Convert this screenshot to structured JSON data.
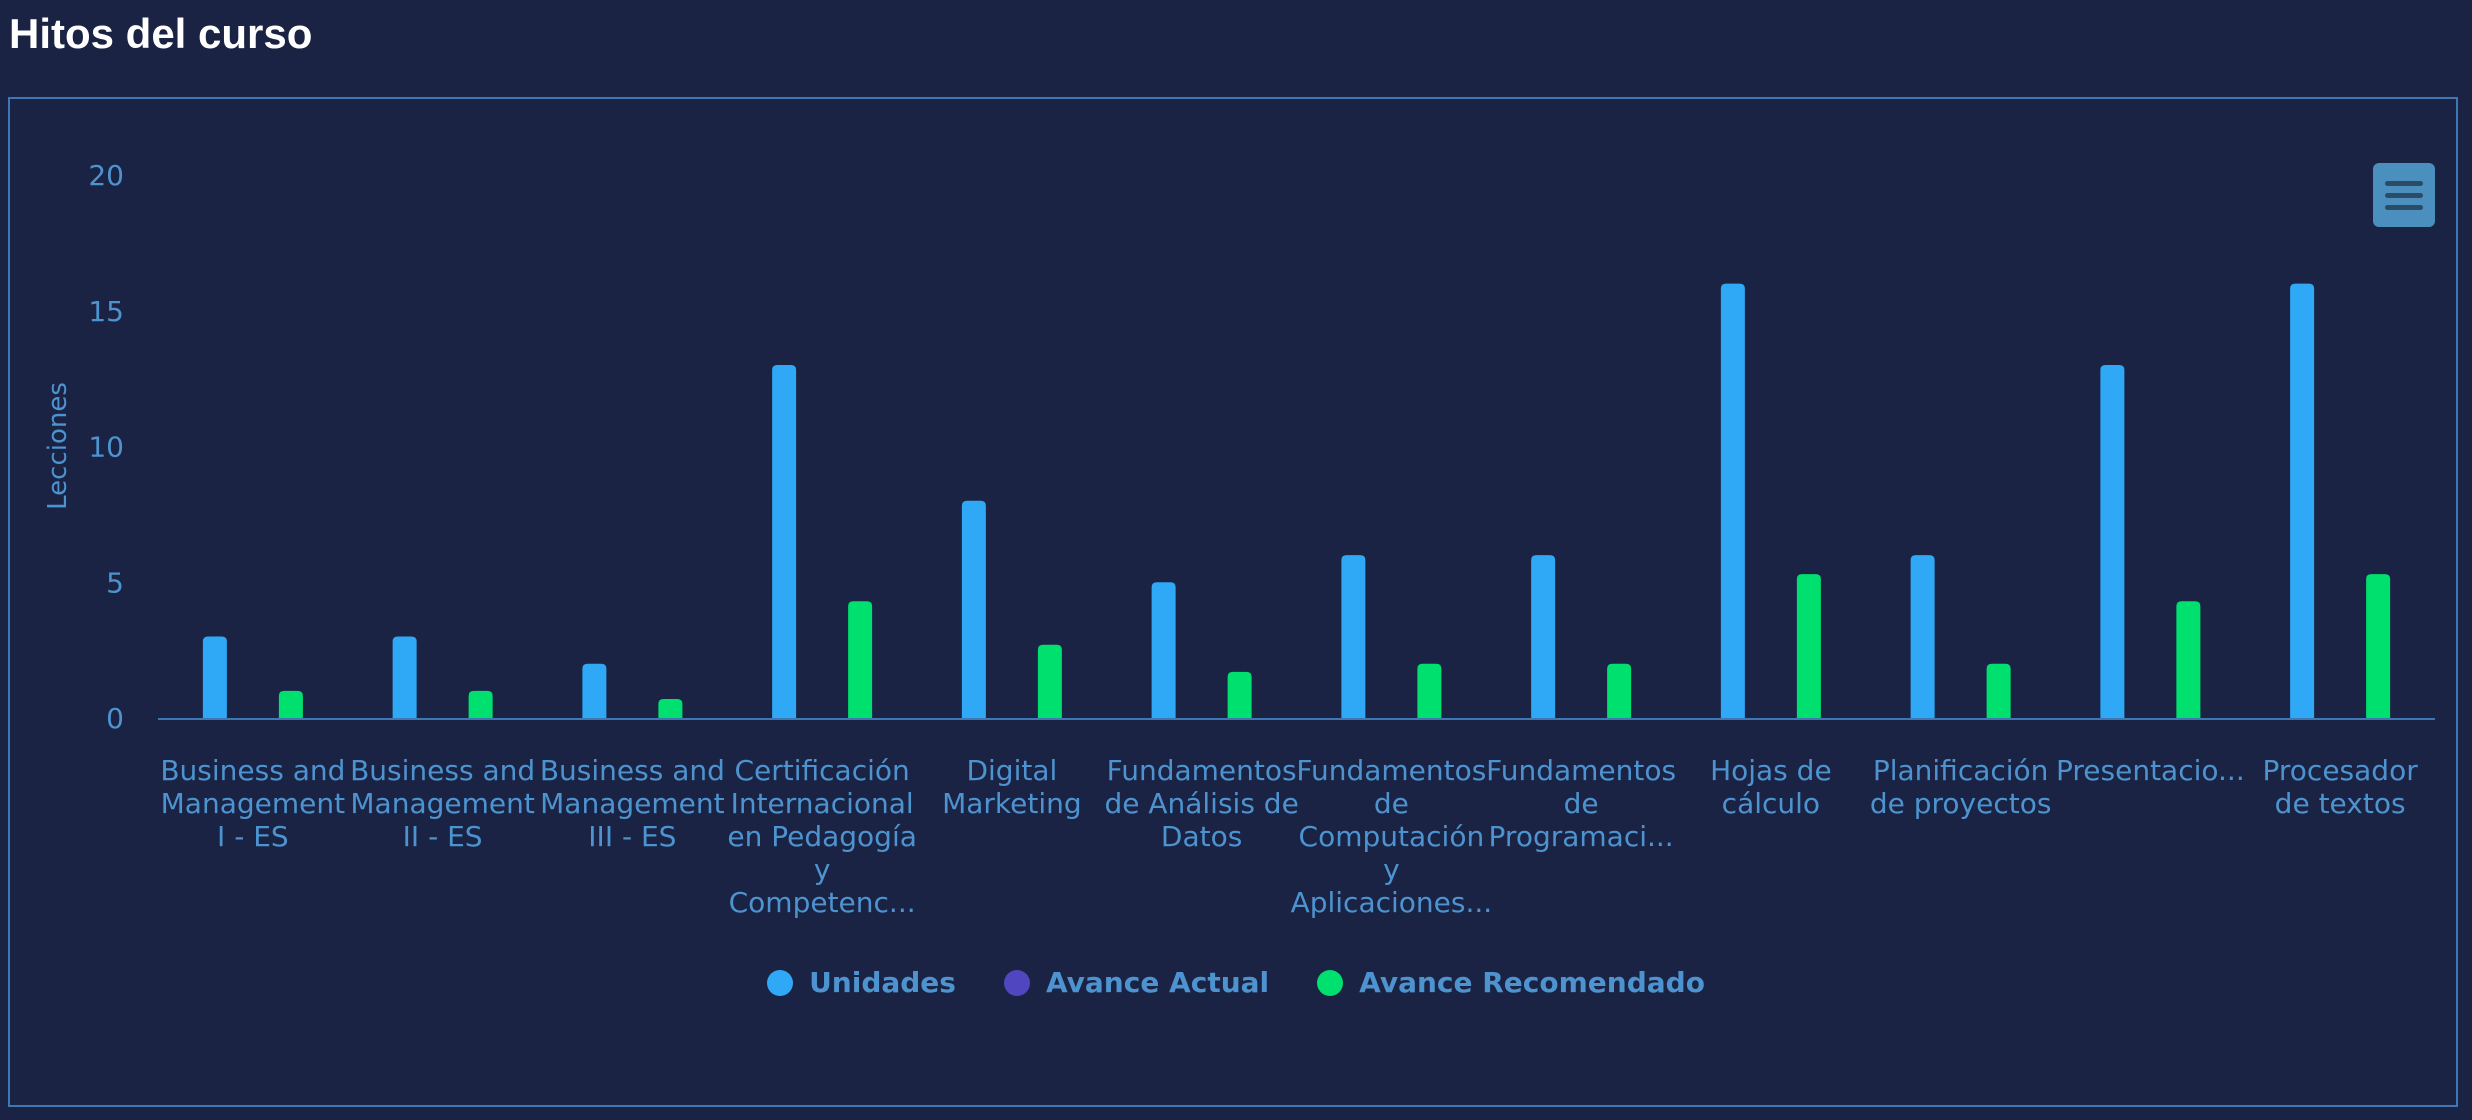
{
  "page": {
    "title": "Hitos del curso"
  },
  "chart_data": {
    "type": "bar",
    "ylabel": "Lecciones",
    "ylim": [
      0,
      20
    ],
    "yticks": [
      0,
      5,
      10,
      15,
      20
    ],
    "grid": false,
    "legend_position": "bottom",
    "categories": [
      [
        "Business and",
        "Management",
        "I - ES"
      ],
      [
        "Business and",
        "Management",
        "II - ES"
      ],
      [
        "Business and",
        "Management",
        "III - ES"
      ],
      [
        "Certificación",
        "Internacional",
        "en Pedagogía",
        "y",
        "Competenc..."
      ],
      [
        "Digital",
        "Marketing"
      ],
      [
        "Fundamentos",
        "de Análisis de",
        "Datos"
      ],
      [
        "Fundamentos",
        "de",
        "Computación",
        "y",
        "Aplicaciones..."
      ],
      [
        "Fundamentos",
        "de",
        "Programaci..."
      ],
      [
        "Hojas de",
        "cálculo"
      ],
      [
        "Planificación",
        "de proyectos"
      ],
      [
        "Presentacio..."
      ],
      [
        "Procesador",
        "de textos"
      ]
    ],
    "series": [
      {
        "name": "Unidades",
        "color": "#2fa8f6",
        "values": [
          3,
          3,
          2,
          13,
          8,
          5,
          6,
          6,
          16,
          6,
          13,
          16
        ]
      },
      {
        "name": "Avance Actual",
        "color": "#5046bf",
        "values": [
          0,
          0,
          0,
          0,
          0,
          0,
          0,
          0,
          0,
          0,
          0,
          0
        ]
      },
      {
        "name": "Avance Recomendado",
        "color": "#00e06e",
        "values": [
          1,
          1,
          0.7,
          4.3,
          2.7,
          1.7,
          2,
          2,
          5.3,
          2,
          4.3,
          5.3
        ]
      }
    ]
  },
  "toolbar": {
    "menu_icon": "hamburger-menu-icon"
  }
}
